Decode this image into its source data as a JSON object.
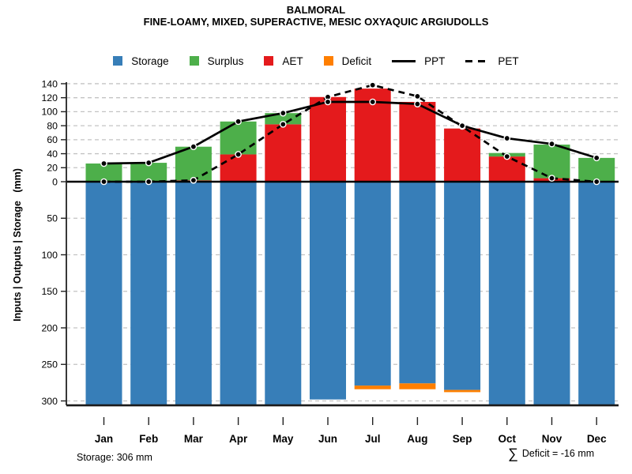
{
  "title": "BALMORAL",
  "subtitle": "FINE-LOAMY, MIXED, SUPERACTIVE, MESIC OXYAQUIC ARGIUDOLLS",
  "y_axis_label": "Inputs | Outputs | Storage   (mm)",
  "legend": {
    "items": [
      {
        "label": "Storage",
        "swatch": "square",
        "color": "#377eb8"
      },
      {
        "label": "Surplus",
        "swatch": "square",
        "color": "#4daf4a"
      },
      {
        "label": "AET",
        "swatch": "square",
        "color": "#e41a1c"
      },
      {
        "label": "Deficit",
        "swatch": "square",
        "color": "#ff7f00"
      },
      {
        "label": "PPT",
        "swatch": "line-solid",
        "color": "#000000"
      },
      {
        "label": "PET",
        "swatch": "line-dashed",
        "color": "#000000"
      }
    ]
  },
  "footer": {
    "storage_note": "Storage: 306 mm",
    "deficit_sum_symbol": "∑",
    "deficit_sum_text": "Deficit = -16 mm"
  },
  "chart_data": {
    "type": "bar",
    "subtype": "monthly-water-balance with overlaid lines",
    "title": "BALMORAL",
    "subtitle": "FINE-LOAMY, MIXED, SUPERACTIVE, MESIC OXYAQUIC ARGIUDOLLS",
    "ylabel": "Inputs | Outputs | Storage (mm)",
    "categories": [
      "Jan",
      "Feb",
      "Mar",
      "Apr",
      "May",
      "Jun",
      "Jul",
      "Aug",
      "Sep",
      "Oct",
      "Nov",
      "Dec"
    ],
    "series": [
      {
        "name": "AET",
        "render": "bar-up",
        "color": "#e41a1c",
        "axis": "upper",
        "values": [
          0,
          0,
          2,
          39,
          82,
          121,
          133,
          114,
          76,
          36,
          5,
          0
        ]
      },
      {
        "name": "Surplus",
        "render": "bar-up-stacked-on-AET",
        "color": "#4daf4a",
        "axis": "upper",
        "values": [
          26,
          27,
          48,
          47,
          16,
          0,
          0,
          0,
          0,
          5,
          48,
          34
        ]
      },
      {
        "name": "Storage",
        "render": "bar-down",
        "color": "#377eb8",
        "axis": "storage",
        "values": [
          306,
          306,
          306,
          306,
          306,
          298,
          279,
          276,
          285,
          306,
          306,
          306
        ]
      },
      {
        "name": "Deficit",
        "render": "bar-appended-below-storage",
        "color": "#ff7f00",
        "axis": "storage",
        "values": [
          0,
          0,
          0,
          0,
          0,
          0,
          5,
          8,
          3,
          0,
          0,
          0
        ]
      },
      {
        "name": "PPT",
        "render": "line-solid",
        "color": "#000000",
        "axis": "upper",
        "values": [
          26,
          27,
          50,
          86,
          98,
          114,
          114,
          111,
          80,
          62,
          54,
          34
        ]
      },
      {
        "name": "PET",
        "render": "line-dashed",
        "color": "#000000",
        "axis": "upper",
        "values": [
          0,
          0,
          2,
          39,
          82,
          121,
          138,
          122,
          79,
          36,
          5,
          0
        ]
      }
    ],
    "upper_axis": {
      "min": 0,
      "max": 140,
      "label_ticks": [
        0,
        20,
        40,
        60,
        80,
        100,
        120,
        140
      ],
      "direction": "up"
    },
    "storage_axis": {
      "min": 0,
      "max": 306,
      "label_ticks": [
        50,
        100,
        150,
        200,
        250,
        300
      ],
      "direction": "down"
    },
    "grid": {
      "style": "dashed-horizontal",
      "color": "#c3c3c3"
    },
    "legend_position": "top",
    "annotations": [
      "Storage: 306 mm",
      "∑ Deficit = -16 mm"
    ]
  }
}
